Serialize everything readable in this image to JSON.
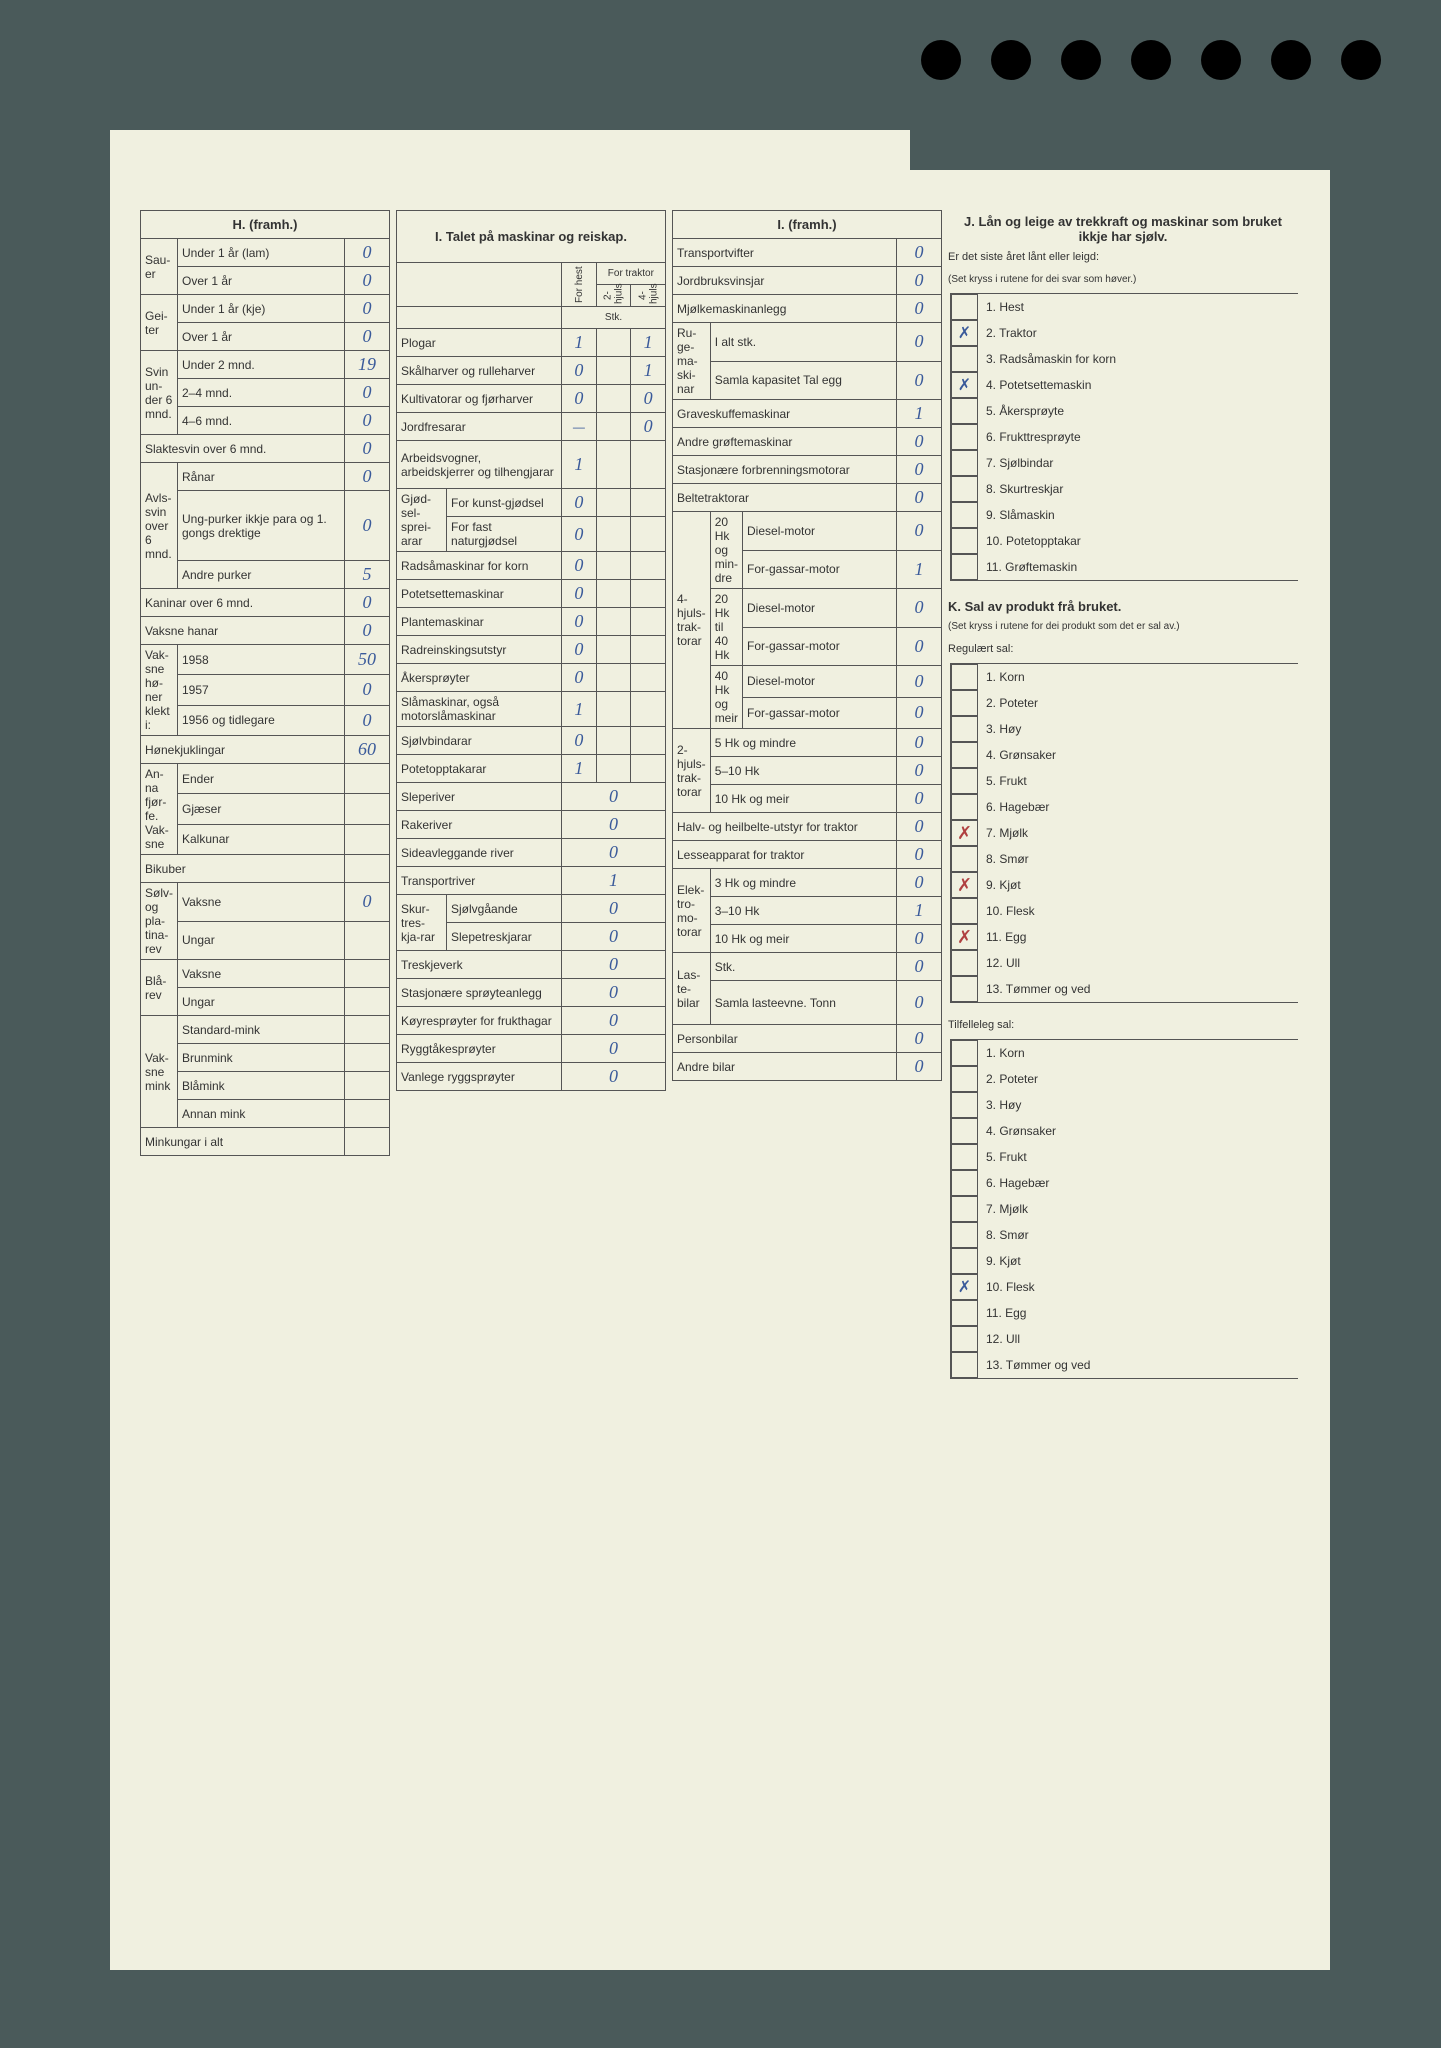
{
  "sectionH": {
    "title": "H. (framh.)",
    "groups": [
      {
        "label": "Sau-er",
        "rows": [
          {
            "label": "Under 1 år (lam)",
            "val": "0"
          },
          {
            "label": "Over 1 år",
            "val": "0"
          }
        ]
      },
      {
        "label": "Gei-ter",
        "rows": [
          {
            "label": "Under 1 år (kje)",
            "val": "0"
          },
          {
            "label": "Over 1 år",
            "val": "0"
          }
        ]
      },
      {
        "label": "Svin un-der 6 mnd.",
        "rows": [
          {
            "label": "Under 2 mnd.",
            "val": "19"
          },
          {
            "label": "2–4 mnd.",
            "val": "0"
          },
          {
            "label": "4–6 mnd.",
            "val": "0"
          }
        ]
      }
    ],
    "slaktesvin": {
      "label": "Slaktesvin over 6 mnd.",
      "val": "0"
    },
    "avlssvin": {
      "label": "Avls-svin over 6 mnd.",
      "rows": [
        {
          "label": "Rånar",
          "val": "0"
        },
        {
          "label": "Ung-purker ikkje para og 1. gongs drektige",
          "val": "0"
        },
        {
          "label": "Andre purker",
          "val": "5"
        }
      ]
    },
    "kaninar": {
      "label": "Kaninar over 6 mnd.",
      "val": "0"
    },
    "vaksne_hanar": {
      "label": "Vaksne hanar",
      "val": "0"
    },
    "honer": {
      "label": "Vak-sne hø-ner klekt i:",
      "rows": [
        {
          "label": "1958",
          "val": "50"
        },
        {
          "label": "1957",
          "val": "0"
        },
        {
          "label": "1956 og tidlegare",
          "val": "0"
        }
      ]
    },
    "honekjuklingar": {
      "label": "Hønekjuklingar",
      "val": "60"
    },
    "fjorfe": {
      "label": "An-na fjør-fe. Vak-sne",
      "rows": [
        {
          "label": "Ender",
          "val": ""
        },
        {
          "label": "Gjæser",
          "val": ""
        },
        {
          "label": "Kalkunar",
          "val": ""
        }
      ]
    },
    "bikuber": {
      "label": "Bikuber",
      "val": ""
    },
    "rev": {
      "label": "Sølv- og pla-tina-rev",
      "rows": [
        {
          "label": "Vaksne",
          "val": "0"
        },
        {
          "label": "Ungar",
          "val": ""
        }
      ]
    },
    "blarev": {
      "label": "Blå-rev",
      "rows": [
        {
          "label": "Vaksne",
          "val": ""
        },
        {
          "label": "Ungar",
          "val": ""
        }
      ]
    },
    "mink": {
      "label": "Vak-sne mink",
      "rows": [
        {
          "label": "Standard-mink",
          "val": ""
        },
        {
          "label": "Brunmink",
          "val": ""
        },
        {
          "label": "Blåmink",
          "val": ""
        },
        {
          "label": "Annan mink",
          "val": ""
        }
      ]
    },
    "minkungar": {
      "label": "Minkungar i alt",
      "val": ""
    }
  },
  "sectionI1": {
    "title": "I. Talet på maskinar og reiskap.",
    "sub_headers": {
      "c1": "For hest",
      "c2": "2-hjuls",
      "c3": "4-hjuls",
      "traktor": "For traktor",
      "stk": "Stk."
    },
    "rows": [
      {
        "label": "Plogar",
        "v1": "1",
        "v2": "",
        "v3": "1"
      },
      {
        "label": "Skålharver og rulleharver",
        "v1": "0",
        "v2": "",
        "v3": "1"
      },
      {
        "label": "Kultivatorar og fjørharver",
        "v1": "0",
        "v2": "",
        "v3": "0"
      },
      {
        "label": "Jordfresarar",
        "v1": "—",
        "v2": "",
        "v3": "0"
      },
      {
        "label": "Arbeidsvogner, arbeidskjerrer og tilhengjarar",
        "v1": "1",
        "v2": "",
        "v3": ""
      },
      {
        "label": "For kunst-gjødsel",
        "group": "Gjød-sel-sprei-arar",
        "v1": "0",
        "v2": "",
        "v3": ""
      },
      {
        "label": "For fast naturgjødsel",
        "v1": "0",
        "v2": "",
        "v3": ""
      },
      {
        "label": "Radsåmaskinar for korn",
        "v1": "0",
        "v2": "",
        "v3": ""
      },
      {
        "label": "Potetsettemaskinar",
        "v1": "0",
        "v2": "",
        "v3": ""
      },
      {
        "label": "Plantemaskinar",
        "v1": "0",
        "v2": "",
        "v3": ""
      },
      {
        "label": "Radreinskingsutstyr",
        "v1": "0",
        "v2": "",
        "v3": ""
      },
      {
        "label": "Åkersprøyter",
        "v1": "0",
        "v2": "",
        "v3": ""
      },
      {
        "label": "Slåmaskinar, også motorslåmaskinar",
        "v1": "1",
        "v2": "",
        "v3": ""
      },
      {
        "label": "Sjølvbindarar",
        "v1": "0",
        "v2": "",
        "v3": ""
      },
      {
        "label": "Potetopptakarar",
        "v1": "1",
        "v2": "",
        "v3": ""
      }
    ],
    "single_rows": [
      {
        "label": "Sleperiver",
        "val": "0"
      },
      {
        "label": "Rakeriver",
        "val": "0"
      },
      {
        "label": "Sideavleggande river",
        "val": "0"
      },
      {
        "label": "Transportriver",
        "val": "1"
      },
      {
        "label": "Sjølvgåande",
        "group": "Skur-tres-kja-rar",
        "val": "0"
      },
      {
        "label": "Slepetreskjarar",
        "val": "0"
      },
      {
        "label": "Treskjeverk",
        "val": "0"
      },
      {
        "label": "Stasjonære sprøyteanlegg",
        "val": "0"
      },
      {
        "label": "Køyresprøyter for frukthagar",
        "val": "0"
      },
      {
        "label": "Ryggtåkesprøyter",
        "val": "0"
      },
      {
        "label": "Vanlege ryggsprøyter",
        "val": "0"
      }
    ]
  },
  "sectionI2": {
    "title": "I. (framh.)",
    "top_rows": [
      {
        "label": "Transportvifter",
        "val": "0"
      },
      {
        "label": "Jordbruksvinsjar",
        "val": "0"
      },
      {
        "label": "Mjølkemaskinanlegg",
        "val": "0"
      }
    ],
    "ruge": {
      "label": "Ru-ge-ma-ski-nar",
      "rows": [
        {
          "label": "I alt stk.",
          "val": "0"
        },
        {
          "label": "Samla kapasitet Tal egg",
          "val": "0"
        }
      ]
    },
    "groft": [
      {
        "label": "Graveskuffemaskinar",
        "val": "1"
      },
      {
        "label": "Andre grøftemaskinar",
        "val": "0"
      },
      {
        "label": "Stasjonære forbrenningsmotorar",
        "val": "0"
      },
      {
        "label": "Beltetraktorar",
        "val": "0"
      }
    ],
    "traktor4": {
      "label": "4-hjuls-trak-torar",
      "groups": [
        {
          "head": "20 Hk og min-dre",
          "rows": [
            {
              "label": "Diesel-motor",
              "val": "0"
            },
            {
              "label": "For-gassar-motor",
              "val": "1"
            }
          ]
        },
        {
          "head": "20 Hk til 40 Hk",
          "rows": [
            {
              "label": "Diesel-motor",
              "val": "0"
            },
            {
              "label": "For-gassar-motor",
              "val": "0"
            }
          ]
        },
        {
          "head": "40 Hk og meir",
          "rows": [
            {
              "label": "Diesel-motor",
              "val": "0"
            },
            {
              "label": "For-gassar-motor",
              "val": "0"
            }
          ]
        }
      ]
    },
    "traktor2": {
      "label": "2-hjuls-trak-torar",
      "rows": [
        {
          "label": "5 Hk og mindre",
          "val": "0"
        },
        {
          "label": "5–10 Hk",
          "val": "0"
        },
        {
          "label": "10 Hk og meir",
          "val": "0"
        }
      ]
    },
    "misc": [
      {
        "label": "Halv- og heilbelte-utstyr for traktor",
        "val": "0"
      },
      {
        "label": "Lesseapparat for traktor",
        "val": "0"
      }
    ],
    "elektro": {
      "label": "Elek-tro-mo-torar",
      "rows": [
        {
          "label": "3 Hk og mindre",
          "val": "0"
        },
        {
          "label": "3–10 Hk",
          "val": "1"
        },
        {
          "label": "10 Hk og meir",
          "val": "0"
        }
      ]
    },
    "laste": {
      "label": "Las-te-bilar",
      "rows": [
        {
          "label": "Stk.",
          "val": "0"
        },
        {
          "label": "Samla lasteevne. Tonn",
          "val": "0"
        }
      ]
    },
    "bottom": [
      {
        "label": "Personbilar",
        "val": "0"
      },
      {
        "label": "Andre bilar",
        "val": "0"
      }
    ]
  },
  "sectionJ": {
    "title": "J. Lån og leige av trekkraft og maskinar som bruket ikkje har sjølv.",
    "sub": "Er det siste året lånt eller leigd:",
    "note": "(Set kryss i rutene for dei svar som høver.)",
    "items": [
      {
        "n": "1.",
        "label": "Hest",
        "mark": ""
      },
      {
        "n": "2.",
        "label": "Traktor",
        "mark": "✗"
      },
      {
        "n": "3.",
        "label": "Radsåmaskin for korn",
        "mark": ""
      },
      {
        "n": "4.",
        "label": "Potetsettemaskin",
        "mark": "✗"
      },
      {
        "n": "5.",
        "label": "Åkersprøyte",
        "mark": ""
      },
      {
        "n": "6.",
        "label": "Frukttresprøyte",
        "mark": ""
      },
      {
        "n": "7.",
        "label": "Sjølbindar",
        "mark": ""
      },
      {
        "n": "8.",
        "label": "Skurtreskjar",
        "mark": ""
      },
      {
        "n": "9.",
        "label": "Slåmaskin",
        "mark": ""
      },
      {
        "n": "10.",
        "label": "Potetopptakar",
        "mark": ""
      },
      {
        "n": "11.",
        "label": "Grøftemaskin",
        "mark": ""
      }
    ]
  },
  "sectionK": {
    "title": "K. Sal av produkt frå bruket.",
    "note": "(Set kryss i rutene for dei produkt som det er sal av.)",
    "reg_title": "Regulært sal:",
    "reg_items": [
      {
        "n": "1.",
        "label": "Korn",
        "mark": ""
      },
      {
        "n": "2.",
        "label": "Poteter",
        "mark": ""
      },
      {
        "n": "3.",
        "label": "Høy",
        "mark": ""
      },
      {
        "n": "4.",
        "label": "Grønsaker",
        "mark": ""
      },
      {
        "n": "5.",
        "label": "Frukt",
        "mark": ""
      },
      {
        "n": "6.",
        "label": "Hagebær",
        "mark": ""
      },
      {
        "n": "7.",
        "label": "Mjølk",
        "mark": "✗"
      },
      {
        "n": "8.",
        "label": "Smør",
        "mark": ""
      },
      {
        "n": "9.",
        "label": "Kjøt",
        "mark": "✗"
      },
      {
        "n": "10.",
        "label": "Flesk",
        "mark": ""
      },
      {
        "n": "11.",
        "label": "Egg",
        "mark": "✗"
      },
      {
        "n": "12.",
        "label": "Ull",
        "mark": ""
      },
      {
        "n": "13.",
        "label": "Tømmer og ved",
        "mark": ""
      }
    ],
    "tilf_title": "Tilfelleleg sal:",
    "tilf_items": [
      {
        "n": "1.",
        "label": "Korn",
        "mark": ""
      },
      {
        "n": "2.",
        "label": "Poteter",
        "mark": ""
      },
      {
        "n": "3.",
        "label": "Høy",
        "mark": ""
      },
      {
        "n": "4.",
        "label": "Grønsaker",
        "mark": ""
      },
      {
        "n": "5.",
        "label": "Frukt",
        "mark": ""
      },
      {
        "n": "6.",
        "label": "Hagebær",
        "mark": ""
      },
      {
        "n": "7.",
        "label": "Mjølk",
        "mark": ""
      },
      {
        "n": "8.",
        "label": "Smør",
        "mark": ""
      },
      {
        "n": "9.",
        "label": "Kjøt",
        "mark": ""
      },
      {
        "n": "10.",
        "label": "Flesk",
        "mark": "✗"
      },
      {
        "n": "11.",
        "label": "Egg",
        "mark": ""
      },
      {
        "n": "12.",
        "label": "Ull",
        "mark": ""
      },
      {
        "n": "13.",
        "label": "Tømmer og ved",
        "mark": ""
      }
    ]
  }
}
